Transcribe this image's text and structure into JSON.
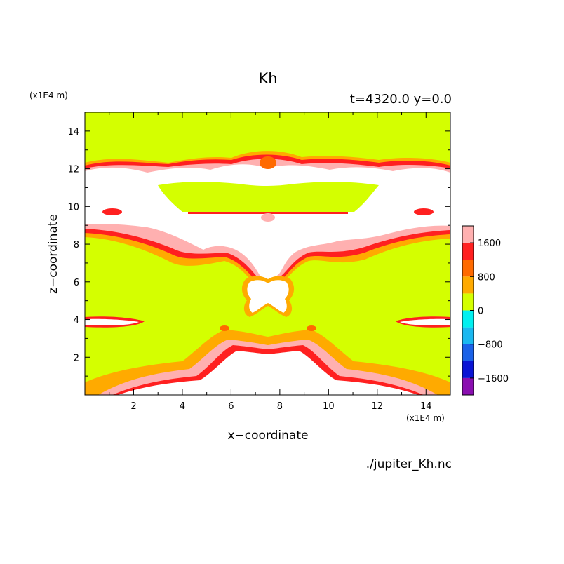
{
  "chart_data": {
    "type": "heatmap",
    "title": "Kh",
    "subtitle": "t=4320.0  y=0.0",
    "xlabel": "x−coordinate",
    "ylabel": "z−coordinate",
    "x_unit": "(x1E4 m)",
    "y_unit": "(x1E4 m)",
    "footer": "./jupiter_Kh.nc",
    "xlim": [
      0,
      15
    ],
    "ylim": [
      0,
      15
    ],
    "x_ticks": [
      2,
      4,
      6,
      8,
      10,
      12,
      14
    ],
    "y_ticks": [
      2,
      4,
      6,
      8,
      10,
      12,
      14
    ],
    "colorbar": {
      "levels": [
        -2000,
        -1600,
        -1200,
        -800,
        -400,
        0,
        400,
        800,
        1200,
        1600,
        2000
      ],
      "colors": [
        "#8a0fb0",
        "#0a14d4",
        "#1a62e8",
        "#1ab8f0",
        "#00f0f0",
        "#d4ff00",
        "#ffaa00",
        "#ff6a00",
        "#ff2020",
        "#ffb0b0"
      ],
      "tick_labels": [
        "1600",
        "800",
        "0",
        "−800",
        "−1600"
      ],
      "tick_values": [
        1600,
        800,
        0,
        -800,
        -1600
      ]
    },
    "background_color": "#d4ff00",
    "high_value_color": "#ffffff"
  }
}
